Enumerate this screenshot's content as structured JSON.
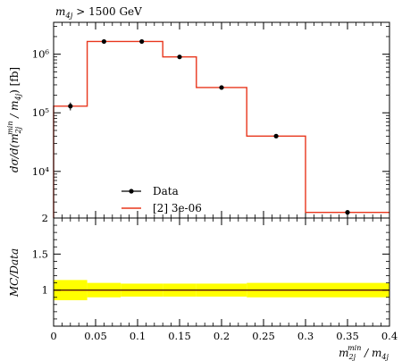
{
  "title": "m_4j > 1500 GeV",
  "chart_data": [
    {
      "type": "line",
      "panel": "main",
      "xlabel": "m_2j^min / m_4j",
      "ylabel": "dσ/d(m_2j^min / m_4j) [fb]",
      "xlim": [
        0,
        0.4
      ],
      "ylim": [
        1600,
        3500000
      ],
      "y_scale": "log",
      "x_ticks": [
        "0",
        "0.05",
        "0.1",
        "0.15",
        "0.2",
        "0.25",
        "0.3",
        "0.35",
        "0.4"
      ],
      "y_ticks": [
        {
          "value": 10000,
          "label": "10⁴"
        },
        {
          "value": 100000,
          "label": "10⁵"
        },
        {
          "value": 1000000,
          "label": "10⁶"
        }
      ],
      "legend_position": "lower-left",
      "series": [
        {
          "name": "Data",
          "style": "points",
          "color": "#000000",
          "x": [
            0.02,
            0.06,
            0.105,
            0.15,
            0.2,
            0.265,
            0.35
          ],
          "y": [
            130000,
            1650000,
            1650000,
            900000,
            270000,
            40000,
            2000
          ],
          "yerr": [
            20000,
            90000,
            90000,
            40000,
            12000,
            2000,
            120
          ]
        },
        {
          "name": "[2] 3e-06",
          "style": "step",
          "color": "#e8361c",
          "bin_edges": [
            0,
            0.04,
            0.08,
            0.13,
            0.17,
            0.23,
            0.3,
            0.4
          ],
          "values": [
            130000,
            1650000,
            1650000,
            900000,
            270000,
            40000,
            2000
          ]
        }
      ]
    },
    {
      "type": "line",
      "panel": "ratio",
      "ylabel": "MC/Data",
      "xlabel": "m_2j^min / m_4j",
      "xlim": [
        0,
        0.4
      ],
      "ylim": [
        0.5,
        2
      ],
      "x_ticks": [
        "0",
        "0.05",
        "0.1",
        "0.15",
        "0.2",
        "0.25",
        "0.3",
        "0.35",
        "0.4"
      ],
      "y_ticks": [
        "1",
        "1.5",
        "2"
      ],
      "series": [
        {
          "name": "[2] 3e-06",
          "style": "step",
          "color": "#e8361c",
          "bin_edges": [
            0,
            0.04,
            0.08,
            0.13,
            0.17,
            0.23,
            0.3,
            0.4
          ],
          "values": [
            1,
            1,
            1,
            1,
            1,
            1,
            1
          ]
        },
        {
          "name": "Data uncertainty",
          "style": "band",
          "color": "#ffff00",
          "bin_edges": [
            0,
            0.04,
            0.08,
            0.13,
            0.17,
            0.23,
            0.3,
            0.4
          ],
          "low": [
            0.86,
            0.9,
            0.91,
            0.91,
            0.91,
            0.9,
            0.9
          ],
          "high": [
            1.14,
            1.1,
            1.09,
            1.09,
            1.09,
            1.1,
            1.1
          ]
        }
      ]
    }
  ]
}
